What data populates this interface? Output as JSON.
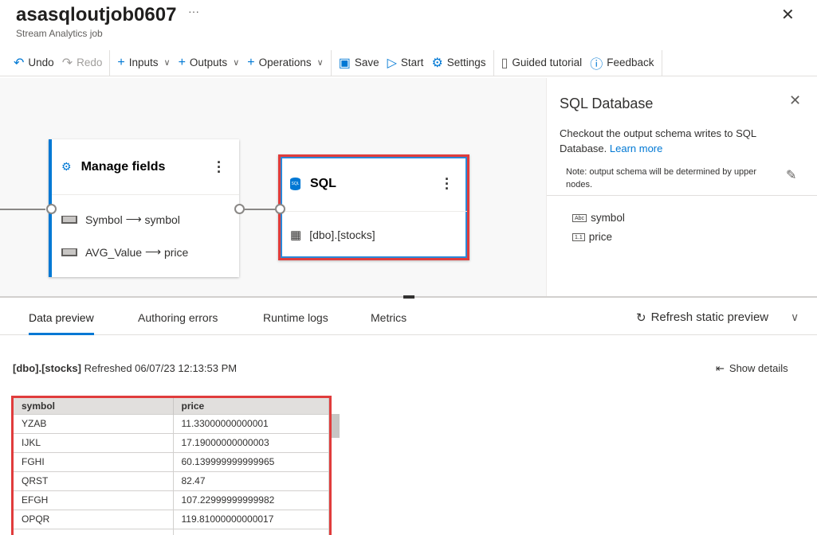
{
  "header": {
    "title": "asasqloutjob0607",
    "subtitle": "Stream Analytics job",
    "more": "···",
    "close": "✕"
  },
  "toolbar": {
    "undo": "Undo",
    "redo": "Redo",
    "inputs": "Inputs",
    "outputs": "Outputs",
    "operations": "Operations",
    "save": "Save",
    "start": "Start",
    "settings": "Settings",
    "tutorial": "Guided tutorial",
    "feedback": "Feedback"
  },
  "canvas": {
    "manage_fields": {
      "title": "Manage fields",
      "mappings": [
        {
          "from": "Symbol",
          "to": "symbol"
        },
        {
          "from": "AVG_Value",
          "to": "price"
        }
      ],
      "arrow": "⟶"
    },
    "sql": {
      "title": "SQL",
      "table": "[dbo].[stocks]",
      "icon_text": "SQL"
    }
  },
  "panel": {
    "title": "SQL Database",
    "desc": "Checkout the output schema writes to SQL Database.",
    "link": "Learn more",
    "note": "Note: output schema will be determined by upper nodes.",
    "fields": [
      {
        "type": "Abc",
        "name": "symbol"
      },
      {
        "type": "1.1",
        "name": "price"
      }
    ]
  },
  "bottom": {
    "tabs": [
      "Data preview",
      "Authoring errors",
      "Runtime logs",
      "Metrics"
    ],
    "active_tab": "Data preview",
    "refresh": "Refresh static preview",
    "status_table": "[dbo].[stocks]",
    "status_text": "Refreshed 06/07/23 12:13:53 PM",
    "show_details": "Show details",
    "columns": [
      "symbol",
      "price"
    ],
    "rows": [
      [
        "YZAB",
        "11.33000000000001"
      ],
      [
        "IJKL",
        "17.19000000000003"
      ],
      [
        "FGHI",
        "60.139999999999965"
      ],
      [
        "QRST",
        "82.47"
      ],
      [
        "EFGH",
        "107.22999999999982"
      ],
      [
        "OPQR",
        "119.81000000000017"
      ],
      [
        "",
        ""
      ]
    ]
  },
  "colors": {
    "accent": "#0078d4",
    "highlight": "#e03c3c"
  }
}
